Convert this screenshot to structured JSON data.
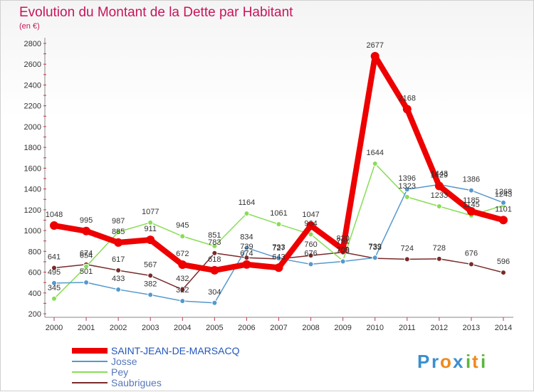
{
  "chart_data": {
    "type": "line",
    "title": "Evolution du Montant de la Dette par Habitant",
    "subtitle": "(en €)",
    "x": [
      "2000",
      "2001",
      "2002",
      "2003",
      "2004",
      "2005",
      "2006",
      "2007",
      "2008",
      "2009",
      "2010",
      "2011",
      "2012",
      "2013",
      "2014"
    ],
    "y_ticks": [
      "200",
      "400",
      "600",
      "800",
      "1000",
      "1200",
      "1400",
      "1600",
      "1800",
      "2000",
      "2200",
      "2400",
      "2600",
      "2800"
    ],
    "ylim": [
      200,
      2800
    ],
    "grid": false,
    "legend_position": "bottom-left",
    "series": [
      {
        "name": "Saubrigues",
        "color": "#7a2a2a",
        "values": [
          641,
          674,
          617,
          567,
          432,
          783,
          739,
          727,
          760,
          791,
          733,
          724,
          728,
          676,
          596
        ]
      },
      {
        "name": "Pey",
        "color": "#88dd55",
        "values": [
          345,
          654,
          987,
          1077,
          945,
          851,
          1164,
          1061,
          964,
          709,
          1644,
          1323,
          1233,
          1145,
          1243
        ]
      },
      {
        "name": "Josse",
        "color": "#5599cc",
        "values": [
          495,
          501,
          433,
          382,
          322,
          304,
          834,
          733,
          676,
          703,
          739,
          1396,
          1443,
          1386,
          1268
        ]
      },
      {
        "name": "SAINT-JEAN-DE-MARSACQ",
        "color": "#ee0000",
        "values": [
          1048,
          995,
          885,
          911,
          672,
          618,
          674,
          643,
          1047,
          820,
          2677,
          2168,
          1429,
          1185,
          1101
        ]
      }
    ]
  },
  "legend": {
    "items": [
      {
        "name": "SAINT-JEAN-DE-MARSACQ",
        "color": "#ee0000"
      },
      {
        "name": "Josse",
        "color": "#5599cc"
      },
      {
        "name": "Pey",
        "color": "#88dd55"
      },
      {
        "name": "Saubrigues",
        "color": "#7a2a2a"
      }
    ]
  },
  "brand": {
    "letters": [
      {
        "ch": "P",
        "color": "#3a8fd0"
      },
      {
        "ch": "r",
        "color": "#3a8fd0"
      },
      {
        "ch": "o",
        "color": "#f08a1c"
      },
      {
        "ch": "x",
        "color": "#3a8fd0"
      },
      {
        "ch": "i",
        "color": "#5bb53c"
      },
      {
        "ch": "t",
        "color": "#f08a1c"
      },
      {
        "ch": "i",
        "color": "#5bb53c"
      }
    ]
  }
}
